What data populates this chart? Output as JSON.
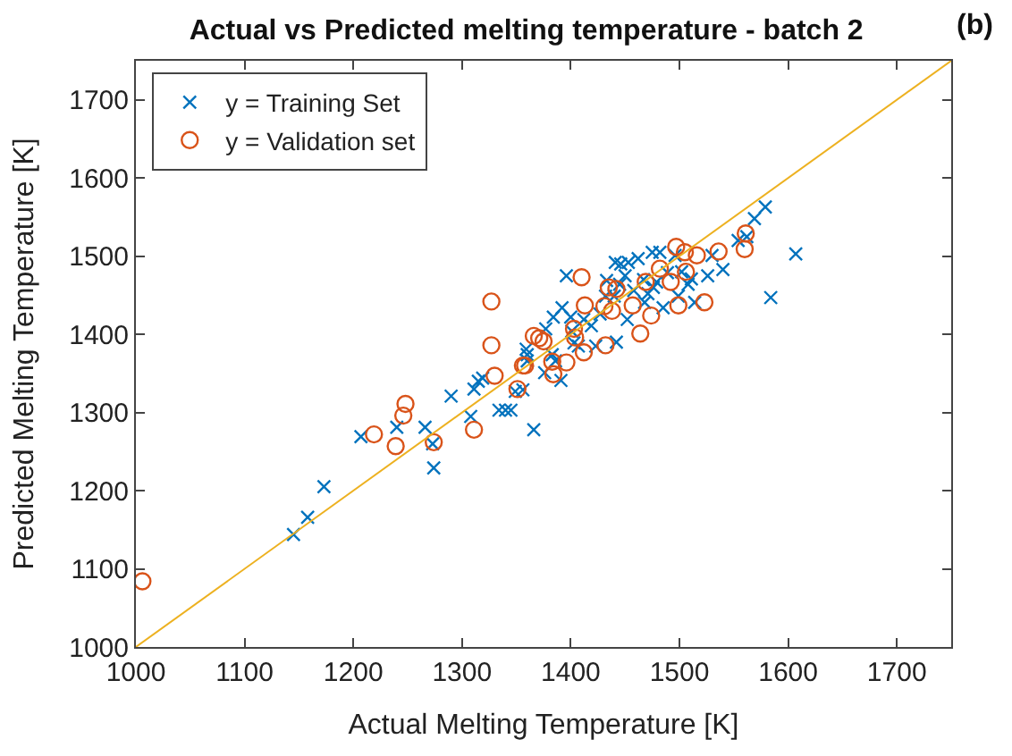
{
  "chart_data": {
    "type": "scatter",
    "title": "Actual vs Predicted melting temperature - batch 2",
    "xlabel": "Actual Melting Temperature [K]",
    "ylabel": "Predicted Melting Temperature [K]",
    "annotations": [
      "(b)"
    ],
    "xlim": [
      1000,
      1750
    ],
    "ylim": [
      1000,
      1750
    ],
    "xticks": [
      1000,
      1100,
      1200,
      1300,
      1400,
      1500,
      1600,
      1700
    ],
    "yticks": [
      1000,
      1100,
      1200,
      1300,
      1400,
      1500,
      1600,
      1700
    ],
    "legend": "top left",
    "series": [
      {
        "name": "y = Training Set",
        "color": "#0072bd",
        "marker": "cross",
        "x": [
          1145,
          1158,
          1173,
          1207,
          1240,
          1266,
          1273,
          1274,
          1290,
          1308,
          1311,
          1315,
          1319,
          1334,
          1340,
          1345,
          1349,
          1356,
          1366,
          1359,
          1360,
          1360,
          1376,
          1377,
          1383,
          1386,
          1384,
          1391,
          1392,
          1396,
          1400,
          1401,
          1403,
          1407,
          1412,
          1419,
          1423,
          1427,
          1432,
          1433,
          1440,
          1442,
          1441,
          1446,
          1445,
          1450,
          1453,
          1452,
          1458,
          1462,
          1467,
          1468,
          1471,
          1475,
          1476,
          1479,
          1482,
          1485,
          1489,
          1496,
          1499,
          1502,
          1508,
          1511,
          1514,
          1526,
          1530,
          1540,
          1554,
          1562,
          1569,
          1579,
          1607,
          1584
        ],
        "values": [
          1144,
          1166,
          1205,
          1269,
          1281,
          1281,
          1260,
          1229,
          1321,
          1295,
          1330,
          1340,
          1344,
          1303,
          1303,
          1303,
          1327,
          1329,
          1278,
          1381,
          1374,
          1366,
          1351,
          1407,
          1374,
          1366,
          1422,
          1341,
          1434,
          1475,
          1422,
          1404,
          1389,
          1385,
          1419,
          1411,
          1385,
          1426,
          1449,
          1469,
          1449,
          1390,
          1492,
          1490,
          1464,
          1475,
          1492,
          1419,
          1456,
          1497,
          1470,
          1441,
          1452,
          1505,
          1460,
          1467,
          1505,
          1434,
          1479,
          1501,
          1449,
          1480,
          1464,
          1471,
          1441,
          1475,
          1501,
          1483,
          1520,
          1525,
          1548,
          1563,
          1503,
          1447
        ]
      },
      {
        "name": "y = Validation set",
        "color": "#d95319",
        "marker": "circle",
        "x": [
          1006,
          1219,
          1239,
          1246,
          1248,
          1274,
          1311,
          1327,
          1327,
          1330,
          1351,
          1356,
          1358,
          1366,
          1371,
          1375,
          1384,
          1383,
          1396,
          1403,
          1404,
          1410,
          1412,
          1413,
          1432,
          1431,
          1435,
          1438,
          1442,
          1457,
          1464,
          1469,
          1474,
          1482,
          1492,
          1497,
          1499,
          1505,
          1506,
          1516,
          1523,
          1536,
          1560,
          1561
        ],
        "values": [
          1084,
          1272,
          1257,
          1296,
          1311,
          1262,
          1278,
          1442,
          1386,
          1347,
          1330,
          1360,
          1360,
          1398,
          1395,
          1391,
          1349,
          1365,
          1364,
          1407,
          1396,
          1473,
          1377,
          1437,
          1386,
          1436,
          1460,
          1430,
          1458,
          1437,
          1401,
          1467,
          1424,
          1484,
          1467,
          1512,
          1437,
          1505,
          1480,
          1501,
          1441,
          1506,
          1509,
          1529
        ]
      },
      {
        "type": "line",
        "color": "#edb120",
        "marker": "none",
        "x": [
          1000,
          1750
        ],
        "values": [
          1000,
          1750
        ]
      }
    ]
  }
}
